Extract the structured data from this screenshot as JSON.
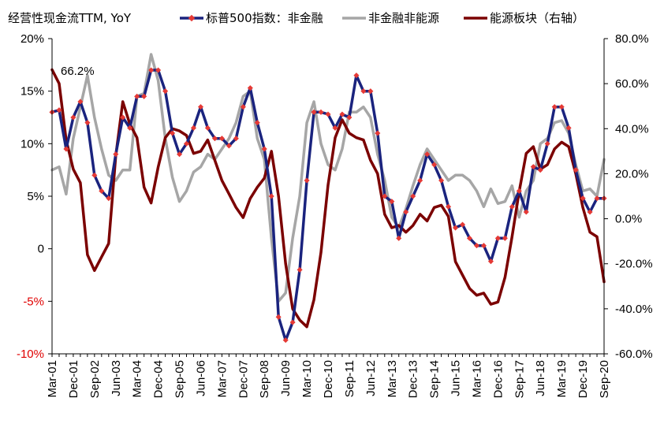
{
  "chart_data": {
    "type": "line",
    "title": "经营性现金流TTM, YoY",
    "x": [
      "Mar-01",
      "Jun-01",
      "Sep-01",
      "Dec-01",
      "Mar-02",
      "Jun-02",
      "Sep-02",
      "Dec-02",
      "Mar-03",
      "Jun-03",
      "Sep-03",
      "Dec-03",
      "Mar-04",
      "Jun-04",
      "Sep-04",
      "Dec-04",
      "Mar-05",
      "Jun-05",
      "Sep-05",
      "Dec-05",
      "Mar-06",
      "Jun-06",
      "Sep-06",
      "Dec-06",
      "Mar-07",
      "Jun-07",
      "Sep-07",
      "Dec-07",
      "Mar-08",
      "Jun-08",
      "Sep-08",
      "Dec-08",
      "Mar-09",
      "Jun-09",
      "Sep-09",
      "Dec-09",
      "Mar-10",
      "Jun-10",
      "Sep-10",
      "Dec-10",
      "Mar-11",
      "Jun-11",
      "Sep-11",
      "Dec-11",
      "Mar-12",
      "Jun-12",
      "Sep-12",
      "Dec-12",
      "Mar-13",
      "Jun-13",
      "Sep-13",
      "Dec-13",
      "Mar-14",
      "Jun-14",
      "Sep-14",
      "Dec-14",
      "Mar-15",
      "Jun-15",
      "Sep-15",
      "Dec-15",
      "Mar-16",
      "Jun-16",
      "Sep-16",
      "Dec-16",
      "Mar-17",
      "Jun-17",
      "Sep-17",
      "Dec-17",
      "Mar-18",
      "Jun-18",
      "Sep-18",
      "Dec-18",
      "Mar-19",
      "Jun-19",
      "Sep-19",
      "Dec-19",
      "Mar-20",
      "Jun-20",
      "Sep-20"
    ],
    "x_tick_labels": [
      "Mar-01",
      "Dec-01",
      "Sep-02",
      "Jun-03",
      "Mar-04",
      "Dec-04",
      "Sep-05",
      "Jun-06",
      "Mar-07",
      "Dec-07",
      "Sep-08",
      "Jun-09",
      "Mar-10",
      "Dec-10",
      "Sep-11",
      "Jun-12",
      "Mar-13",
      "Dec-13",
      "Sep-14",
      "Jun-15",
      "Mar-16",
      "Dec-16",
      "Sep-17",
      "Jun-18",
      "Mar-19",
      "Dec-19",
      "Sep-20"
    ],
    "y_left": {
      "ticks": [
        "-10%",
        "-5%",
        "0",
        "5%",
        "10%",
        "15%",
        "20%"
      ],
      "range": [
        -10,
        20
      ]
    },
    "y_right": {
      "ticks": [
        "-60.0%",
        "-40.0%",
        "-20.0%",
        "0.0%",
        "20.0%",
        "40.0%",
        "60.0%",
        "80.0%"
      ],
      "range": [
        -60,
        80
      ]
    },
    "annotation": "66.2%",
    "legend": [
      "标普500指数：非金融",
      "非金融非能源",
      "能源板块（右轴）"
    ],
    "series": [
      {
        "name": "标普500指数：非金融",
        "axis": "left",
        "color": "#1a237e",
        "marker_color": "#e53935",
        "values": [
          13.0,
          13.2,
          9.5,
          12.5,
          14.0,
          12.0,
          7.0,
          5.5,
          4.8,
          9.0,
          12.5,
          11.5,
          14.5,
          14.5,
          17.0,
          17.0,
          15.0,
          11.0,
          9.0,
          10.0,
          11.5,
          13.5,
          11.5,
          10.5,
          10.5,
          9.8,
          10.5,
          13.5,
          15.3,
          12.0,
          9.5,
          5.0,
          -6.5,
          -8.7,
          -7.0,
          -2.0,
          6.5,
          13.0,
          13.0,
          12.8,
          11.5,
          12.8,
          12.5,
          16.5,
          15.0,
          15.0,
          11.0,
          5.0,
          4.5,
          1.0,
          3.5,
          5.0,
          6.5,
          9.0,
          8.0,
          6.5,
          4.0,
          2.0,
          2.3,
          1.0,
          0.3,
          0.3,
          -1.2,
          1.0,
          1.0,
          4.0,
          5.5,
          3.5,
          7.8,
          7.5,
          10.0,
          13.5,
          13.5,
          11.5,
          7.5,
          4.8,
          3.5,
          4.8,
          4.8
        ]
      },
      {
        "name": "非金融非能源",
        "axis": "left",
        "color": "#a6a6a6",
        "values": [
          7.5,
          7.8,
          5.2,
          10.5,
          13.5,
          16.5,
          12.5,
          9.5,
          7.0,
          6.5,
          7.5,
          7.5,
          14.5,
          14.8,
          18.5,
          16.0,
          10.5,
          6.8,
          4.5,
          5.5,
          7.3,
          7.8,
          9.0,
          8.5,
          9.5,
          10.5,
          12.0,
          14.5,
          15.0,
          10.5,
          8.5,
          1.0,
          -5.0,
          -4.2,
          1.0,
          5.0,
          12.0,
          14.0,
          10.0,
          8.0,
          7.5,
          9.5,
          13.0,
          13.0,
          13.5,
          12.5,
          9.0,
          6.5,
          3.0,
          2.0,
          3.8,
          6.0,
          8.0,
          9.5,
          8.5,
          7.5,
          6.5,
          7.0,
          7.0,
          6.5,
          5.5,
          4.0,
          5.7,
          4.3,
          4.5,
          6.0,
          3.0,
          5.5,
          6.5,
          10.0,
          10.5,
          12.0,
          12.2,
          11.0,
          8.0,
          5.5,
          5.7,
          5.0,
          8.5
        ]
      },
      {
        "name": "能源板块（右轴）",
        "axis": "right",
        "color": "#7b0000",
        "values": [
          66.2,
          60.0,
          35.0,
          22.0,
          16.0,
          -16.0,
          -23.0,
          -17.0,
          -11.0,
          28.0,
          52.0,
          42.0,
          36.0,
          14.0,
          7.0,
          23.0,
          36.0,
          40.0,
          39.0,
          37.0,
          29.0,
          30.0,
          35.0,
          26.0,
          17.0,
          11.0,
          5.0,
          0.5,
          9.0,
          14.0,
          18.0,
          30.0,
          10.0,
          -20.0,
          -40.0,
          -45.0,
          -48.0,
          -36.0,
          -15.0,
          15.0,
          36.0,
          44.0,
          38.0,
          36.0,
          35.0,
          26.0,
          20.0,
          2.0,
          -4.0,
          -3.0,
          -6.0,
          -3.0,
          2.0,
          -1.0,
          5.0,
          6.0,
          1.0,
          -19.0,
          -25.0,
          -31.0,
          -34.0,
          -33.0,
          -38.0,
          -37.0,
          -26.0,
          -8.0,
          12.0,
          29.0,
          32.0,
          22.0,
          24.0,
          31.0,
          34.0,
          32.0,
          20.0,
          5.0,
          -6.0,
          -8.0,
          -28.0
        ]
      }
    ]
  }
}
